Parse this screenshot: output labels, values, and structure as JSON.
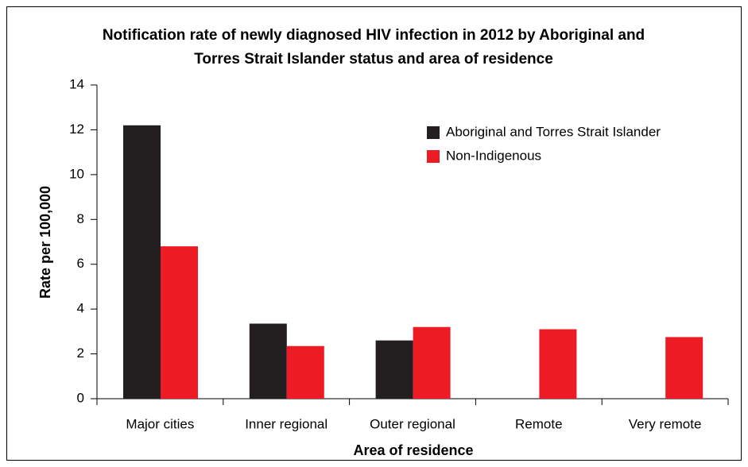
{
  "chart_data": {
    "type": "bar",
    "title": [
      "Notification rate of newly diagnosed HIV infection in 2012 by Aboriginal and",
      "Torres Strait Islander status and area of residence"
    ],
    "x_label": "Area of residence",
    "y_label": "Rate per 100,000",
    "categories": [
      "Major cities",
      "Inner regional",
      "Outer regional",
      "Remote",
      "Very remote"
    ],
    "series": [
      {
        "name": "Aboriginal and Torres Strait Islander",
        "color": "#231f20",
        "values": [
          12.2,
          3.35,
          2.6,
          null,
          null
        ]
      },
      {
        "name": "Non-Indigenous",
        "color": "#ed1c24",
        "values": [
          6.8,
          2.35,
          3.2,
          3.1,
          2.75
        ]
      }
    ],
    "ylim": [
      0,
      14
    ],
    "yticks": [
      0,
      2,
      4,
      6,
      8,
      10,
      12,
      14
    ],
    "grid": false,
    "legend": "upper right"
  }
}
